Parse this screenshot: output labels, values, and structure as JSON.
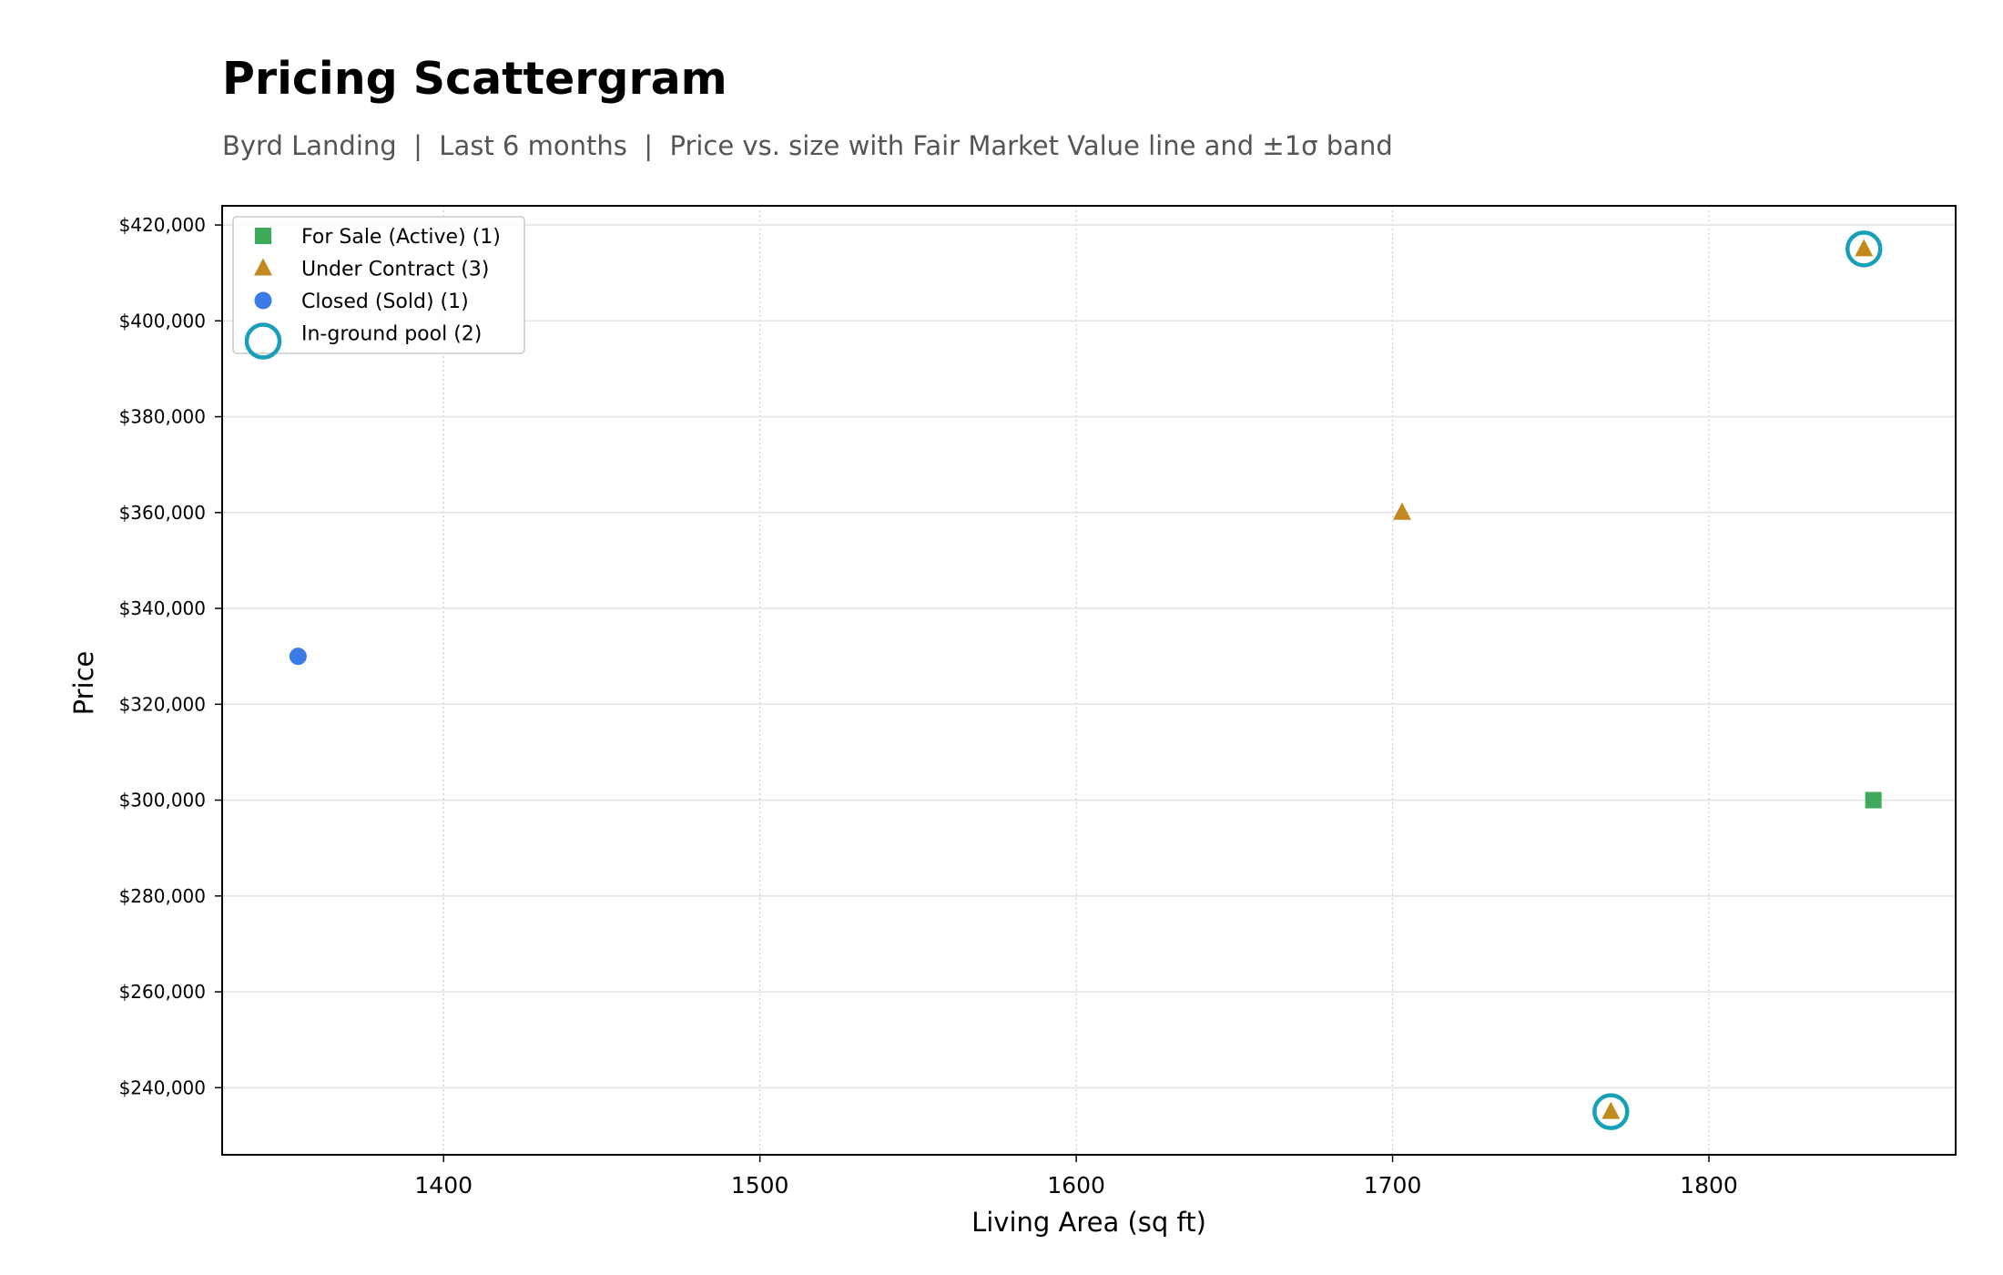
{
  "title": "Pricing Scattergram",
  "subtitle": "Byrd Landing  |  Last 6 months  |  Price vs. size with Fair Market Value line and ±1σ band",
  "chart_data": {
    "type": "scatter",
    "xlabel": "Living Area (sq ft)",
    "ylabel": "Price",
    "xlim": [
      1330,
      1878
    ],
    "ylim": [
      226000,
      424000
    ],
    "x_ticks": [
      1400,
      1500,
      1600,
      1700,
      1800
    ],
    "y_ticks": [
      240000,
      260000,
      280000,
      300000,
      320000,
      340000,
      360000,
      380000,
      400000,
      420000
    ],
    "y_tick_labels": [
      "$240,000",
      "$260,000",
      "$280,000",
      "$300,000",
      "$320,000",
      "$340,000",
      "$360,000",
      "$380,000",
      "$400,000",
      "$420,000"
    ],
    "grid": true,
    "legend_position": "top-left",
    "series": [
      {
        "name": "For Sale (Active) (1)",
        "marker": "square",
        "color": "#3daa5c",
        "points": [
          {
            "x": 1852,
            "y": 300000
          }
        ]
      },
      {
        "name": "Under Contract (3)",
        "marker": "triangle",
        "color": "#c28a1e",
        "points": [
          {
            "x": 1703,
            "y": 360000
          },
          {
            "x": 1769,
            "y": 235000
          },
          {
            "x": 1849,
            "y": 415000
          }
        ]
      },
      {
        "name": "Closed (Sold) (1)",
        "marker": "circle",
        "color": "#3b7be8",
        "points": [
          {
            "x": 1354,
            "y": 330000
          }
        ]
      },
      {
        "name": "In-ground pool (2)",
        "marker": "ring",
        "color": "#17a0b8",
        "points": [
          {
            "x": 1769,
            "y": 235000
          },
          {
            "x": 1849,
            "y": 415000
          }
        ]
      }
    ]
  }
}
